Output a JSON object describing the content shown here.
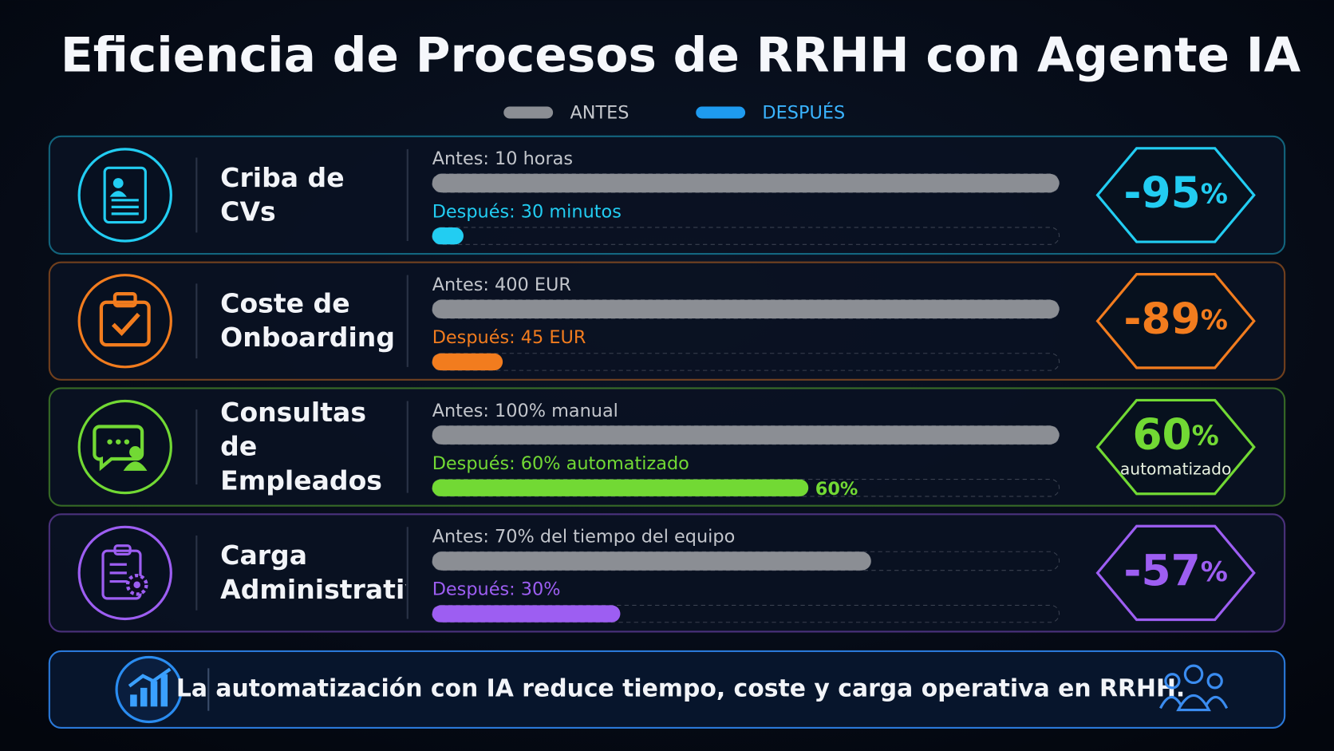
{
  "chart_data": {
    "type": "bar",
    "title": "Eficiencia de Procesos de RRHH con Agente IA",
    "categories": [
      "Criba de CVs",
      "Coste de Onboarding",
      "Consultas de Empleados",
      "Carga Administrativa"
    ],
    "row_colors": [
      "#22cdf2",
      "#f27c1e",
      "#72d934",
      "#9d5ef2"
    ],
    "series": [
      {
        "name": "ANTES",
        "color": "#8b8e94",
        "values": [
          10,
          400,
          100,
          70
        ],
        "value_labels": [
          "Antes: 10 horas",
          "Antes: 400 EUR",
          "Antes: 100% manual",
          "Antes: 70% del tiempo del equipo"
        ]
      },
      {
        "name": "DESPUÉS",
        "color": "#1e9bf0",
        "values": [
          0.5,
          45,
          60,
          30
        ],
        "value_labels": [
          "Después: 30 minutos",
          "Después: 45 EUR",
          "Después: 60% automatizado",
          "Después: 30%"
        ],
        "end_labels": [
          null,
          null,
          "60%",
          null
        ]
      }
    ],
    "xlims": [
      [
        0,
        10
      ],
      [
        0,
        400
      ],
      [
        0,
        100
      ],
      [
        0,
        100
      ]
    ],
    "badges": [
      {
        "value": -95,
        "unit": "%"
      },
      {
        "value": -89,
        "unit": "%"
      },
      {
        "value": 60,
        "unit": "%",
        "note": "automatizado"
      },
      {
        "value": -57,
        "unit": "%"
      }
    ],
    "footer": "La automatización con IA reduce tiempo, coste y carga operativa en RRHH."
  }
}
